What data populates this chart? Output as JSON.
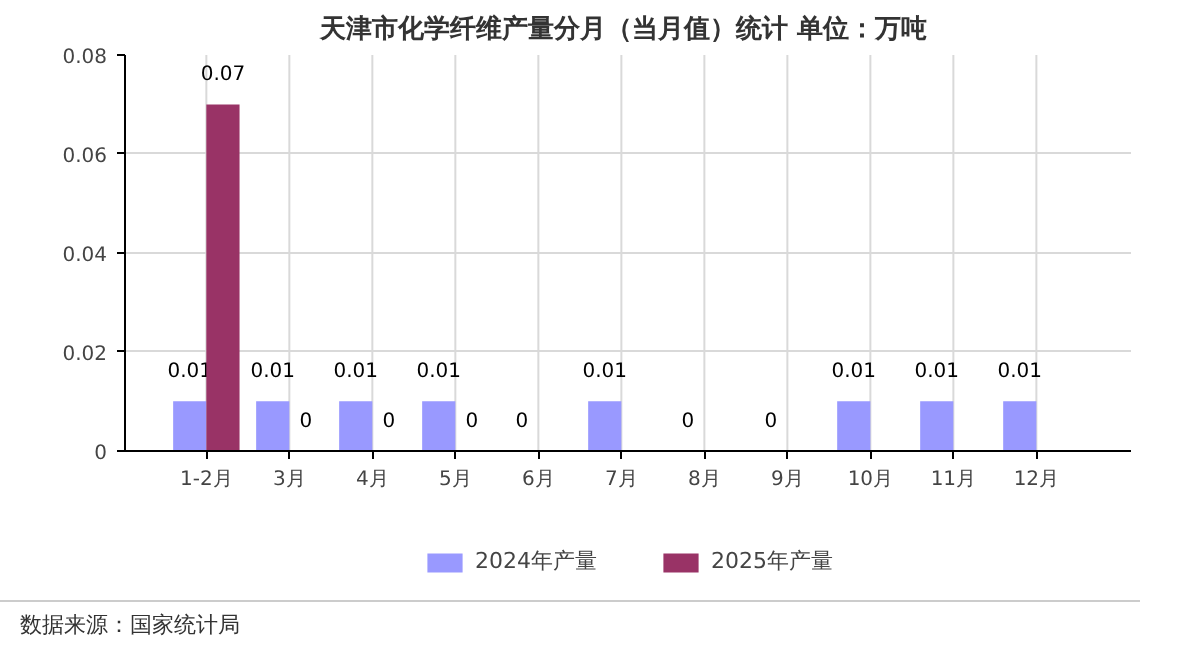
{
  "chart_data": {
    "type": "bar",
    "title": "天津市化学纤维产量分月（当月值）统计  单位：万吨",
    "categories": [
      "1-2月",
      "3月",
      "4月",
      "5月",
      "6月",
      "7月",
      "8月",
      "9月",
      "10月",
      "11月",
      "12月"
    ],
    "series": [
      {
        "name": "2024年产量",
        "color": "#9999ff",
        "values": [
          0.01,
          0.01,
          0.01,
          0.01,
          0,
          0.01,
          0,
          0,
          0.01,
          0.01,
          0.01
        ]
      },
      {
        "name": "2025年产量",
        "color": "#993366",
        "values": [
          0.07,
          0,
          0,
          0,
          null,
          null,
          null,
          null,
          null,
          null,
          null
        ]
      }
    ],
    "ylim": [
      0,
      0.08
    ],
    "yticks": [
      0,
      0.02,
      0.04,
      0.06,
      0.08
    ],
    "data_labels": true,
    "grid": true,
    "legend": "bottom",
    "annotations": [
      "数据来源：国家统计局"
    ]
  }
}
